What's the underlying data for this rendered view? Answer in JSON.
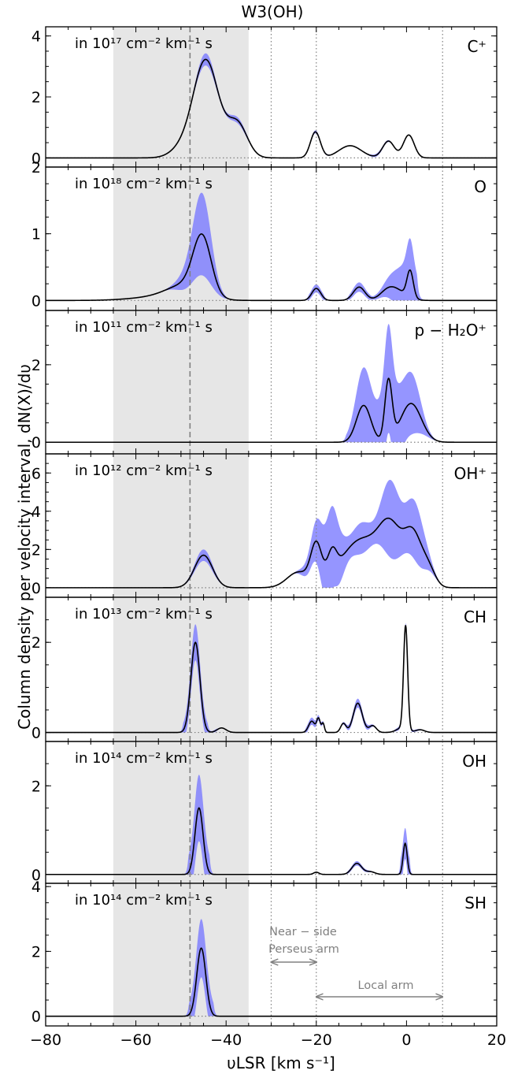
{
  "chart_data": {
    "type": "area",
    "title": "W3(OH)",
    "xlabel": "υLSR [km s⁻¹]",
    "ylabel": "Column density per velocity interval, dN(X)/dυ",
    "xlim": [
      -80,
      20
    ],
    "x_ticks": [
      -80,
      -60,
      -40,
      -20,
      0,
      20
    ],
    "x_tick_labels": [
      "−80",
      "−60",
      "−40",
      "−20",
      "0",
      "20"
    ],
    "shaded_velocity_range": [
      -65,
      -35
    ],
    "dashed_line_velocity": -48,
    "dotted_lines_velocity": [
      -30,
      -20,
      8
    ],
    "annotations": [
      {
        "label": [
          "Near − side",
          "Perseus arm"
        ],
        "range": [
          -30,
          -20
        ]
      },
      {
        "label": [
          "Local arm"
        ],
        "range": [
          -20,
          8
        ]
      }
    ],
    "colors": {
      "band": "#7b7bff",
      "line": "#000000",
      "shade": "#e6e6e6",
      "guides": "#808080"
    },
    "panels": [
      {
        "species": "C⁺",
        "unit": "in 10¹⁷ cm⁻² km⁻¹ s",
        "ylim": [
          -0.3,
          4.3
        ],
        "yticks": [
          0,
          2,
          4
        ],
        "components": [
          [
            -44.5,
            3.2,
            2.8
          ],
          [
            -37.5,
            1.1,
            2.2
          ],
          [
            -50,
            0.25,
            2.5
          ],
          [
            -20.2,
            0.85,
            1.1
          ],
          [
            -12.5,
            0.4,
            2.5
          ],
          [
            -4,
            0.55,
            1.3
          ],
          [
            0.5,
            0.75,
            1.2
          ]
        ],
        "uncertainty": [
          [
            -44.5,
            0.2
          ],
          [
            -37.5,
            0.1
          ],
          [
            -20,
            0.05
          ],
          [
            -6,
            0.05
          ]
        ]
      },
      {
        "species": "O",
        "unit": "in 10¹⁸ cm⁻² km⁻¹ s",
        "ylim": [
          -0.15,
          2.0
        ],
        "yticks": [
          0,
          1,
          2
        ],
        "components": [
          [
            -45.3,
            0.85,
            2.0
          ],
          [
            -49,
            0.2,
            4
          ],
          [
            -55,
            0.05,
            6
          ],
          [
            -20,
            0.18,
            1.0
          ],
          [
            -10.5,
            0.2,
            1.3
          ],
          [
            -4,
            0.15,
            1.8
          ],
          [
            0.8,
            0.4,
            0.7
          ],
          [
            -1.5,
            0.1,
            2
          ]
        ],
        "uncertainty": [
          [
            -45.3,
            0.6
          ],
          [
            -49,
            0.1
          ],
          [
            -20,
            0.06
          ],
          [
            -10.5,
            0.07
          ],
          [
            -3,
            0.15
          ],
          [
            0.8,
            0.45
          ]
        ]
      },
      {
        "species": "p − H₂O⁺",
        "unit": "in 10¹¹ cm⁻² km⁻¹ s",
        "ylim": [
          -0.3,
          3.4
        ],
        "yticks": [
          0,
          2
        ],
        "components": [
          [
            -9.5,
            0.95,
            1.6
          ],
          [
            -4,
            1.55,
            0.8
          ],
          [
            1,
            1.0,
            2.3
          ]
        ],
        "uncertainty": [
          [
            -9.5,
            0.95
          ],
          [
            -4,
            1.35
          ],
          [
            1,
            0.75
          ]
        ]
      },
      {
        "species": "OH⁺",
        "unit": "in 10¹² cm⁻² km⁻¹ s",
        "ylim": [
          -0.5,
          7.0
        ],
        "yticks": [
          0,
          2,
          4,
          6
        ],
        "components": [
          [
            -45,
            1.7,
            2.0
          ],
          [
            -20,
            2.0,
            1.2
          ],
          [
            -16.5,
            1.2,
            1.0
          ],
          [
            -24,
            0.8,
            2.5
          ],
          [
            -10,
            2.5,
            4.5
          ],
          [
            -3.5,
            2.6,
            2.5
          ],
          [
            1.5,
            2.6,
            2.0
          ],
          [
            5,
            0.8,
            1.5
          ]
        ],
        "uncertainty": [
          [
            -45,
            0.3
          ],
          [
            -20,
            0.7
          ],
          [
            -16.5,
            2.0
          ],
          [
            -10,
            0.8
          ],
          [
            -3.5,
            2.0
          ],
          [
            2,
            1.5
          ]
        ]
      },
      {
        "species": "CH",
        "unit": "in 10¹³ cm⁻² km⁻¹ s",
        "ylim": [
          -0.2,
          3.0
        ],
        "yticks": [
          0,
          2
        ],
        "components": [
          [
            -46.8,
            2.0,
            1.0
          ],
          [
            -41,
            0.1,
            1.0
          ],
          [
            -21,
            0.25,
            0.7
          ],
          [
            -19.5,
            0.3,
            0.4
          ],
          [
            -18.5,
            0.2,
            0.3
          ],
          [
            -14,
            0.2,
            0.6
          ],
          [
            -10.8,
            0.65,
            1.0
          ],
          [
            -7.5,
            0.15,
            0.8
          ],
          [
            -0.2,
            2.3,
            0.45
          ],
          [
            -1,
            0.1,
            1.2
          ],
          [
            3,
            0.06,
            1.0
          ]
        ],
        "uncertainty": [
          [
            -46.8,
            0.4
          ],
          [
            -21,
            0.08
          ],
          [
            -10.8,
            0.1
          ],
          [
            -0.2,
            0.05
          ]
        ]
      },
      {
        "species": "OH",
        "unit": "in 10¹⁴ cm⁻² km⁻¹ s",
        "ylim": [
          -0.2,
          3.0
        ],
        "yticks": [
          0,
          2
        ],
        "components": [
          [
            -46,
            1.5,
            0.9
          ],
          [
            -20,
            0.05,
            0.6
          ],
          [
            -11,
            0.25,
            1.1
          ],
          [
            -8,
            0.06,
            1.0
          ],
          [
            -0.3,
            0.7,
            0.45
          ]
        ],
        "uncertainty": [
          [
            -46,
            0.75
          ],
          [
            -11,
            0.05
          ],
          [
            -0.3,
            0.35
          ]
        ]
      },
      {
        "species": "SH",
        "unit": "in 10¹⁴ cm⁻² km⁻¹ s",
        "ylim": [
          -0.3,
          4.1
        ],
        "yticks": [
          0,
          2,
          4
        ],
        "components": [
          [
            -45.5,
            2.1,
            1.0
          ]
        ],
        "uncertainty": [
          [
            -45.5,
            0.9
          ]
        ]
      }
    ]
  }
}
